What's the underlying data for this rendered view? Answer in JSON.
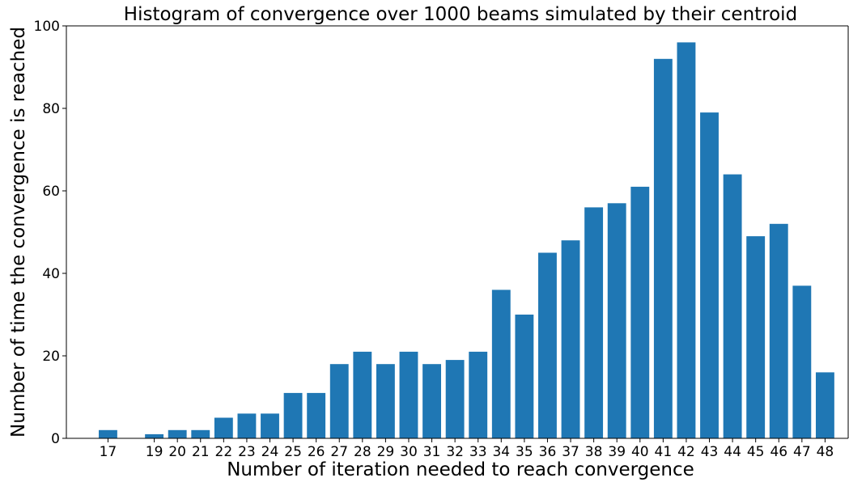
{
  "chart_data": {
    "type": "bar",
    "title": "Histogram of convergence over 1000 beams simulated by their centroid",
    "xlabel": "Number of iteration needed to reach convergence",
    "ylabel": "Number of time the convergence is reached",
    "x": [
      17,
      19,
      20,
      21,
      22,
      23,
      24,
      25,
      26,
      27,
      28,
      29,
      30,
      31,
      32,
      33,
      34,
      35,
      36,
      37,
      38,
      39,
      40,
      41,
      42,
      43,
      44,
      45,
      46,
      47,
      48
    ],
    "values": [
      2,
      1,
      2,
      2,
      5,
      6,
      6,
      11,
      11,
      18,
      21,
      18,
      21,
      18,
      19,
      21,
      36,
      30,
      45,
      48,
      56,
      57,
      61,
      92,
      96,
      79,
      64,
      49,
      52,
      37,
      16
    ],
    "xlim": [
      15.2,
      49.0
    ],
    "ylim": [
      0,
      100
    ],
    "yticks": [
      0,
      20,
      40,
      60,
      80,
      100
    ],
    "bar_color": "#1f77b4",
    "grid": false,
    "legend": "none"
  }
}
